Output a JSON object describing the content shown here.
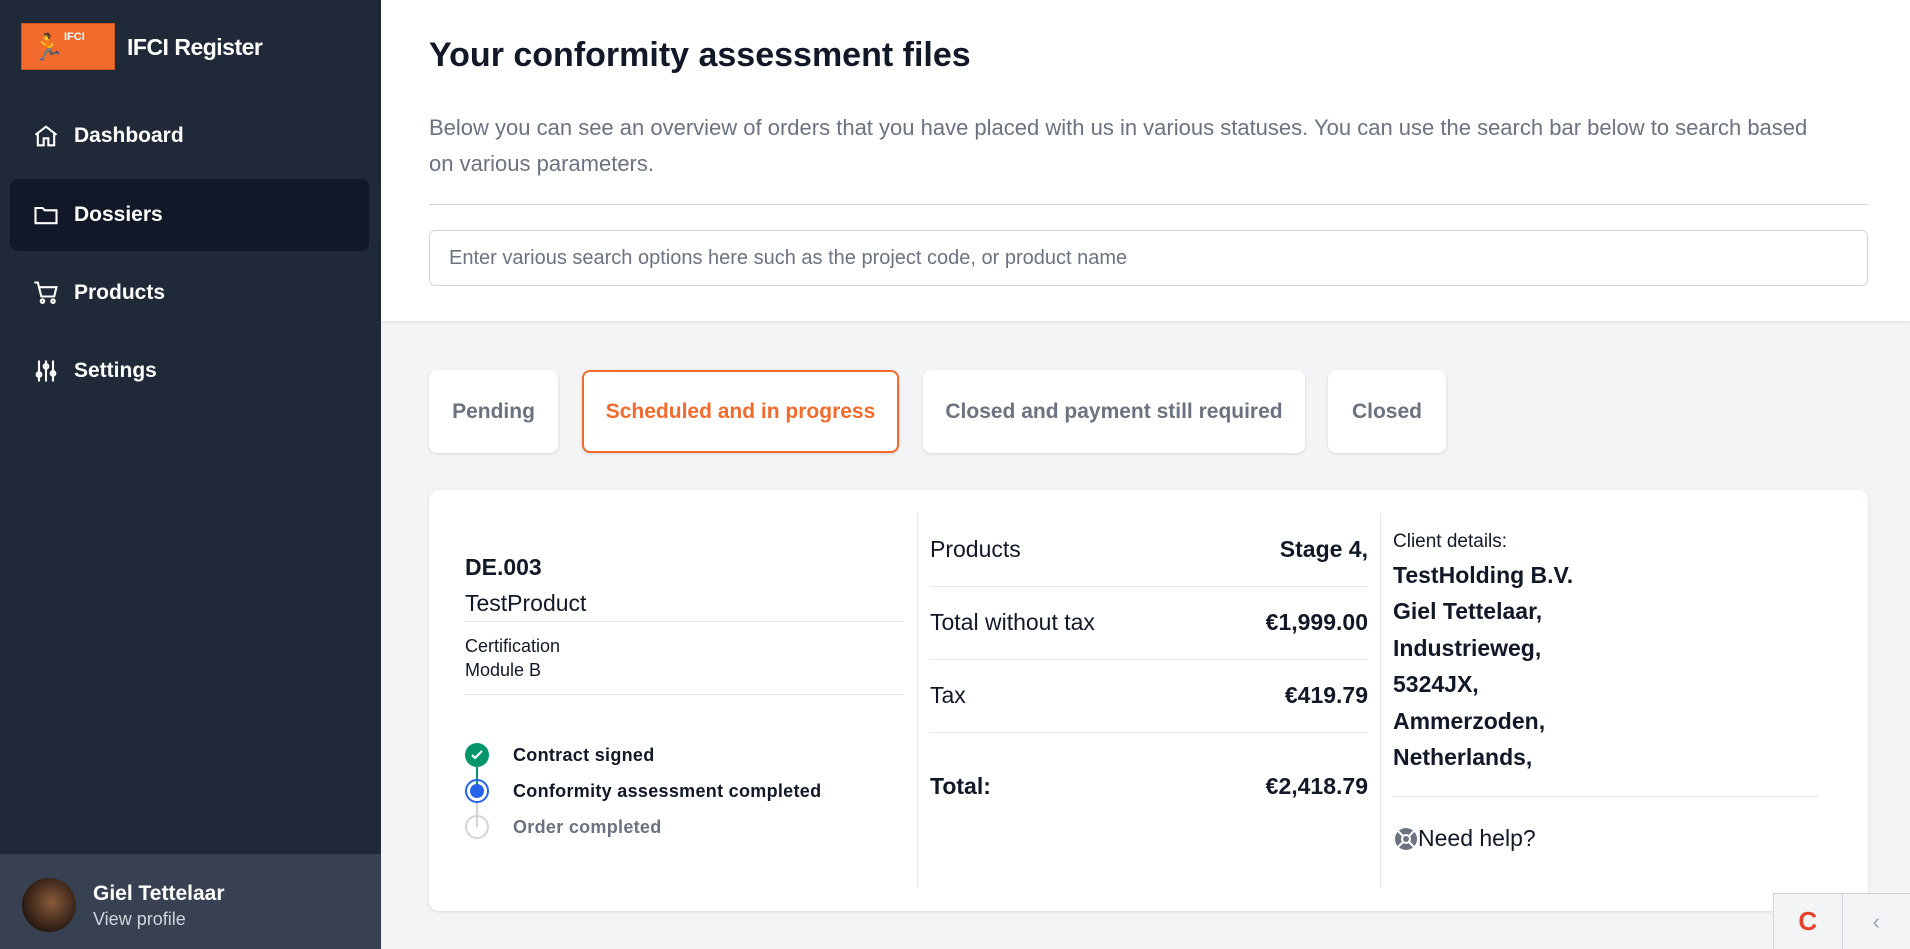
{
  "app": {
    "logo_text": "IFCI",
    "title": "IFCI Register"
  },
  "sidebar": {
    "items": [
      {
        "label": "Dashboard",
        "icon": "home-icon"
      },
      {
        "label": "Dossiers",
        "icon": "folder-icon",
        "active": true
      },
      {
        "label": "Products",
        "icon": "cart-icon"
      },
      {
        "label": "Settings",
        "icon": "sliders-icon"
      }
    ]
  },
  "profile": {
    "name": "Giel Tettelaar",
    "link": "View profile"
  },
  "header": {
    "title": "Your conformity assessment files",
    "description": "Below you can see an overview of orders that you have placed with us in various statuses. You can use the search bar below to search based on various parameters.",
    "search_placeholder": "Enter various search options here such as the project code, or product name"
  },
  "tabs": [
    {
      "label": "Pending"
    },
    {
      "label": "Scheduled and in progress",
      "active": true
    },
    {
      "label": "Closed and payment still required"
    },
    {
      "label": "Closed"
    }
  ],
  "order": {
    "code": "DE.003",
    "product": "TestProduct",
    "type": "Certification",
    "module": "Module B",
    "steps": [
      {
        "label": "Contract signed",
        "status": "complete"
      },
      {
        "label": "Conformity assessment completed",
        "status": "current"
      },
      {
        "label": "Order completed",
        "status": "upcoming"
      }
    ],
    "summary": [
      {
        "label": "Products",
        "value": "Stage 4,"
      },
      {
        "label": "Total without tax",
        "value": "€1,999.00"
      },
      {
        "label": "Tax",
        "value": "€419.79"
      },
      {
        "label": "Total:",
        "value": "€2,418.79"
      }
    ],
    "client": {
      "heading": "Client details:",
      "lines": [
        "TestHolding B.V.",
        "Giel Tettelaar,",
        "Industrieweg,",
        "5324JX,",
        "Ammerzoden,",
        "Netherlands,"
      ]
    },
    "help": "Need help?"
  },
  "colors": {
    "accent": "#f26b2c",
    "sidebar": "#1f2937",
    "complete": "#059669",
    "current": "#2563eb"
  }
}
